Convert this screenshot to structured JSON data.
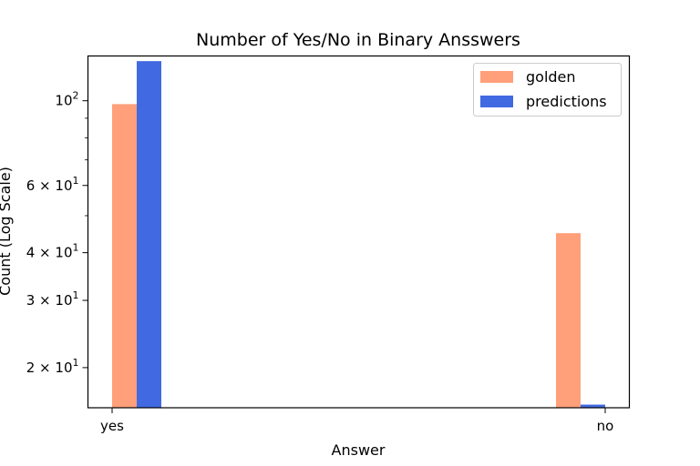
{
  "chart_data": {
    "type": "bar",
    "title": "Number of Yes/No in Binary Ansswers",
    "xlabel": "Answer",
    "ylabel": "Count (Log Scale)",
    "yscale": "log",
    "ylim": [
      15.7,
      131
    ],
    "categories": [
      "yes",
      "no"
    ],
    "series": [
      {
        "name": "golden",
        "values": [
          98,
          45
        ],
        "color": "#FFA07A"
      },
      {
        "name": "predictions",
        "values": [
          127,
          16
        ],
        "color": "#4169E1"
      }
    ],
    "y_major_ticks": [
      {
        "value": 100,
        "mantissa": "",
        "base": "10",
        "exp": "2"
      },
      {
        "value": 60,
        "mantissa": "6 × ",
        "base": "10",
        "exp": "1"
      },
      {
        "value": 40,
        "mantissa": "4 × ",
        "base": "10",
        "exp": "1"
      },
      {
        "value": 30,
        "mantissa": "3 × ",
        "base": "10",
        "exp": "1"
      },
      {
        "value": 20,
        "mantissa": "2 × ",
        "base": "10",
        "exp": "1"
      }
    ],
    "y_minor_ticks": [
      50,
      70,
      80,
      90
    ],
    "legend_position": "top-right",
    "grid": false
  }
}
